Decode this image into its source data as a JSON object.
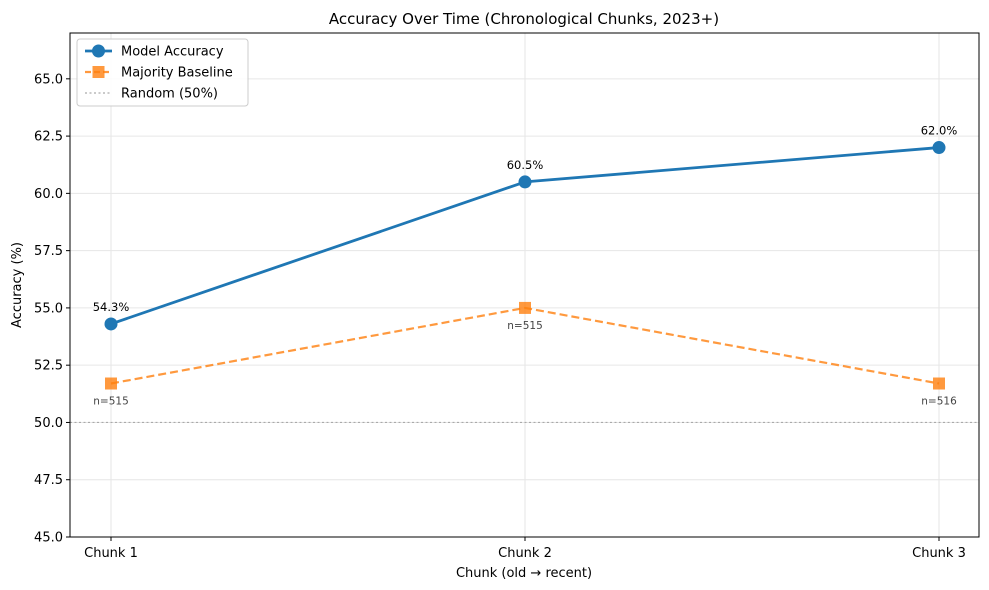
{
  "chart_data": {
    "type": "line",
    "title": "Accuracy Over Time (Chronological Chunks, 2023+)",
    "xlabel": "Chunk (old → recent)",
    "ylabel": "Accuracy (%)",
    "categories": [
      "Chunk 1",
      "Chunk 2",
      "Chunk 3"
    ],
    "ylim": [
      45.0,
      67.0
    ],
    "yticks": [
      "45.0",
      "47.5",
      "50.0",
      "52.5",
      "55.0",
      "57.5",
      "60.0",
      "62.5",
      "65.0"
    ],
    "grid": true,
    "legend_position": "top-left",
    "series": [
      {
        "name": "Model Accuracy",
        "values": [
          54.3,
          60.5,
          62.0
        ],
        "labels": [
          "54.3%",
          "60.5%",
          "62.0%"
        ],
        "color": "#1f77b4",
        "marker": "circle",
        "linestyle": "solid"
      },
      {
        "name": "Majority Baseline",
        "values": [
          51.7,
          55.0,
          51.7
        ],
        "labels": [
          "n=515",
          "n=515",
          "n=516"
        ],
        "color": "#ff7f0e",
        "marker": "square",
        "linestyle": "dashed"
      }
    ],
    "reference_lines": [
      {
        "name": "Random (50%)",
        "value": 50.0,
        "color": "#aaaaaa",
        "linestyle": "dotted"
      }
    ]
  }
}
